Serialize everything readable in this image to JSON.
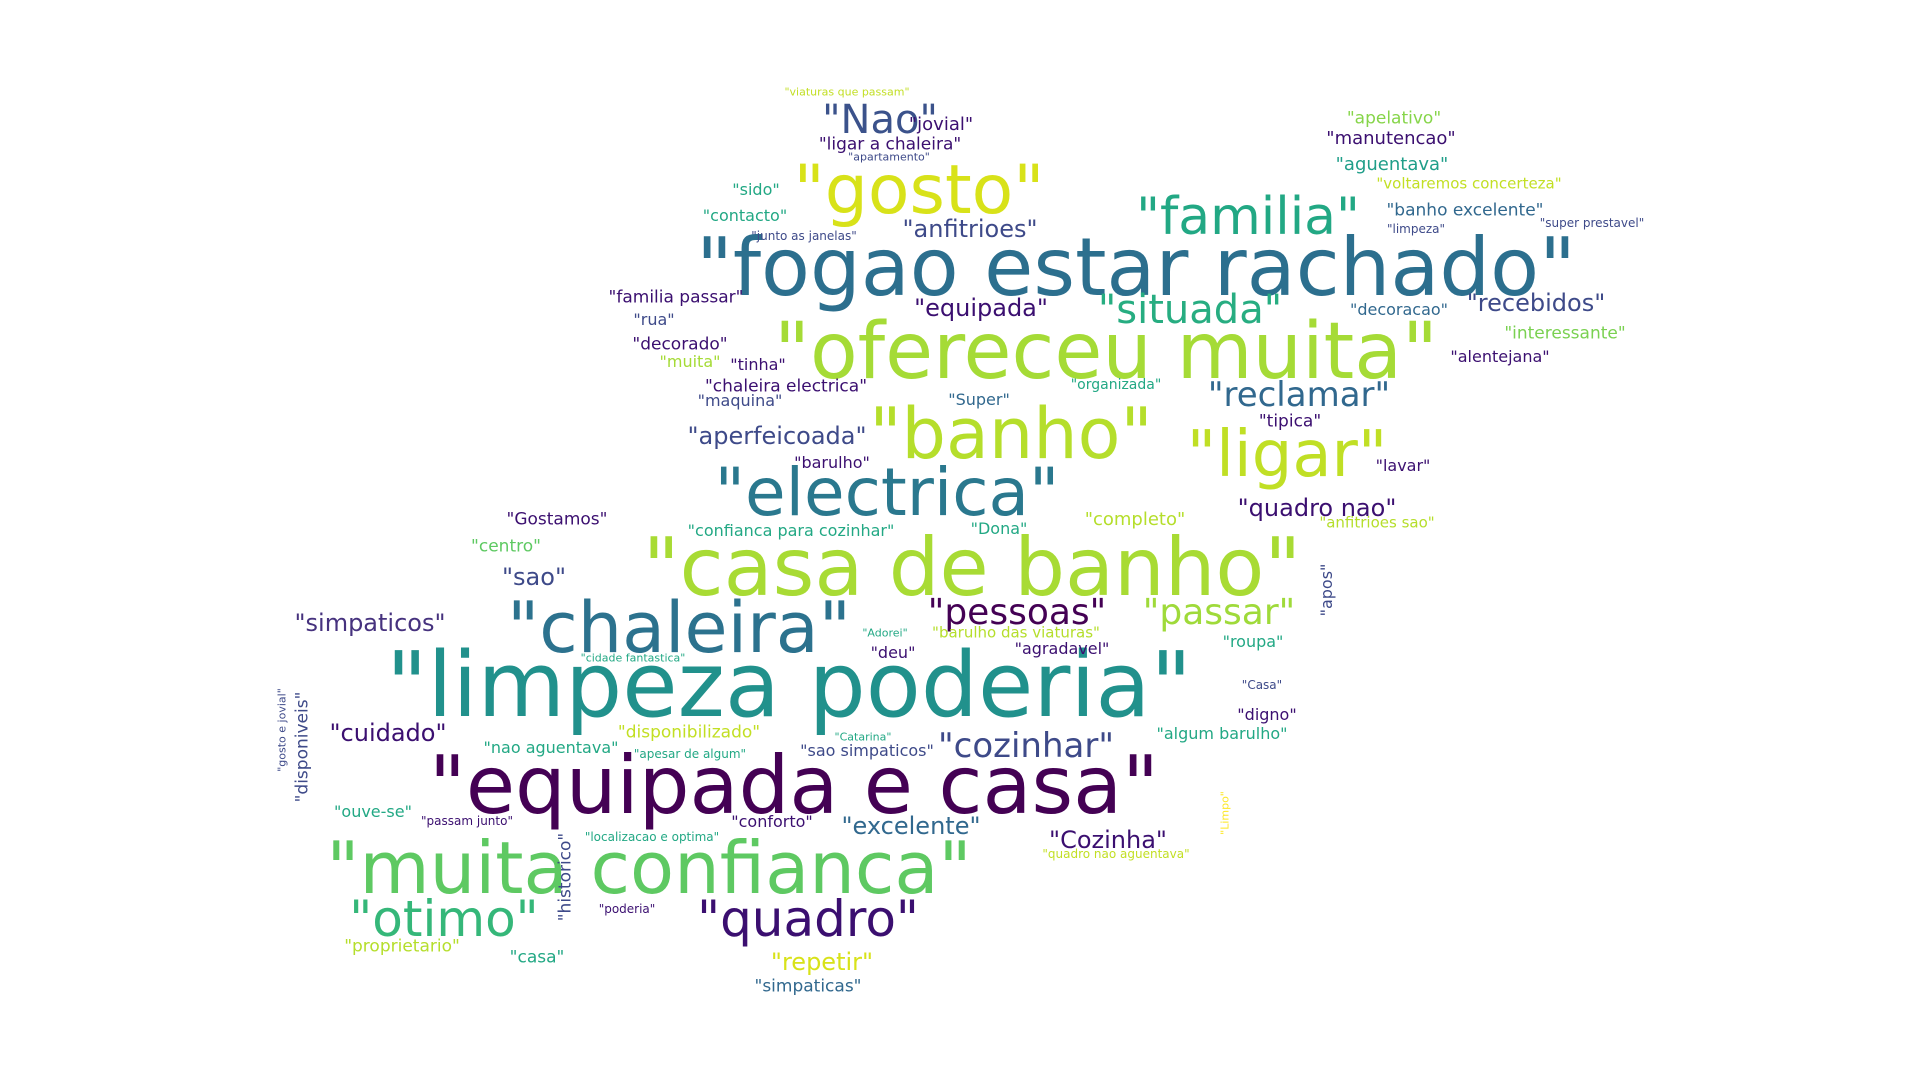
{
  "wordcloud": {
    "words": [
      {
        "text": "\"fogao estar rachado\"",
        "color": "#2c6f8e"
      },
      {
        "text": "\"limpeza poderia\"",
        "color": "#21918c"
      },
      {
        "text": "\"equipada e casa\"",
        "color": "#440154"
      },
      {
        "text": "\"casa de banho\"",
        "color": "#a8db34"
      },
      {
        "text": "\"ofereceu muita\"",
        "color": "#a5db36"
      },
      {
        "text": "\"muita confianca\"",
        "color": "#5ec962"
      },
      {
        "text": "\"gosto\"",
        "color": "#d8e219"
      },
      {
        "text": "\"banho\"",
        "color": "#b5de2b"
      },
      {
        "text": "\"ligar\"",
        "color": "#c0df25"
      },
      {
        "text": "\"electrica\"",
        "color": "#2a788e"
      },
      {
        "text": "\"chaleira\"",
        "color": "#2c728e"
      },
      {
        "text": "\"familia\"",
        "color": "#22a884"
      },
      {
        "text": "\"otimo\"",
        "color": "#35b779"
      },
      {
        "text": "\"quadro\"",
        "color": "#3b0f70"
      },
      {
        "text": "\"Nao\"",
        "color": "#3b528b"
      },
      {
        "text": "\"situada\"",
        "color": "#27ad81"
      },
      {
        "text": "\"reclamar\"",
        "color": "#31688e"
      },
      {
        "text": "\"pessoas\"",
        "color": "#440154"
      },
      {
        "text": "\"passar\"",
        "color": "#9fda3a"
      },
      {
        "text": "\"cozinhar\"",
        "color": "#3e4a89"
      },
      {
        "text": "\"anfitrioes\"",
        "color": "#3e4a89"
      },
      {
        "text": "\"equipada\"",
        "color": "#3b0f70"
      },
      {
        "text": "\"aperfeicoada\"",
        "color": "#3e4a89"
      },
      {
        "text": "\"quadro nao\"",
        "color": "#3b0f70"
      },
      {
        "text": "\"simpaticos\"",
        "color": "#46327e"
      },
      {
        "text": "\"cuidado\"",
        "color": "#3b0f70"
      },
      {
        "text": "\"excelente\"",
        "color": "#31688e"
      },
      {
        "text": "\"Cozinha\"",
        "color": "#3b0f70"
      },
      {
        "text": "\"repetir\"",
        "color": "#d8e219"
      },
      {
        "text": "\"sao\"",
        "color": "#3e4a89"
      },
      {
        "text": "\"recebidos\"",
        "color": "#3e4a89"
      },
      {
        "text": "\"jovial\"",
        "color": "#3b0f70"
      },
      {
        "text": "\"ligar a chaleira\"",
        "color": "#3b0f70"
      },
      {
        "text": "\"apartamento\"",
        "color": "#3e4a89"
      },
      {
        "text": "\"viaturas que passam\"",
        "color": "#c2df23"
      },
      {
        "text": "\"apelativo\"",
        "color": "#86d549"
      },
      {
        "text": "\"manutencao\"",
        "color": "#3b0f70"
      },
      {
        "text": "\"aguentava\"",
        "color": "#1f9e89"
      },
      {
        "text": "\"voltaremos concerteza\"",
        "color": "#c2df23"
      },
      {
        "text": "\"banho excelente\"",
        "color": "#31688e"
      },
      {
        "text": "\"limpeza\"",
        "color": "#3e4a89"
      },
      {
        "text": "\"super prestavel\"",
        "color": "#3e4a89"
      },
      {
        "text": "\"sido\"",
        "color": "#22a884"
      },
      {
        "text": "\"contacto\"",
        "color": "#22a884"
      },
      {
        "text": "\"junto as janelas\"",
        "color": "#3e4a89"
      },
      {
        "text": "\"familia passar\"",
        "color": "#3b0f70"
      },
      {
        "text": "\"rua\"",
        "color": "#3e4a89"
      },
      {
        "text": "\"decorado\"",
        "color": "#3b0f70"
      },
      {
        "text": "\"muita\"",
        "color": "#a5db36"
      },
      {
        "text": "\"tinha\"",
        "color": "#3b0f70"
      },
      {
        "text": "\"chaleira electrica\"",
        "color": "#3b0f70"
      },
      {
        "text": "\"maquina\"",
        "color": "#3e4a89"
      },
      {
        "text": "\"Super\"",
        "color": "#31688e"
      },
      {
        "text": "\"organizada\"",
        "color": "#22a884"
      },
      {
        "text": "\"decoracao\"",
        "color": "#31688e"
      },
      {
        "text": "\"interessante\"",
        "color": "#7ad151"
      },
      {
        "text": "\"alentejana\"",
        "color": "#3b0f70"
      },
      {
        "text": "\"tipica\"",
        "color": "#3b0f70"
      },
      {
        "text": "\"barulho\"",
        "color": "#3b0f70"
      },
      {
        "text": "\"lavar\"",
        "color": "#3b0f70"
      },
      {
        "text": "\"Gostamos\"",
        "color": "#3b0f70"
      },
      {
        "text": "\"confianca para cozinhar\"",
        "color": "#22a884"
      },
      {
        "text": "\"Dona\"",
        "color": "#22a884"
      },
      {
        "text": "\"completo\"",
        "color": "#b5de2b"
      },
      {
        "text": "\"anfitrioes sao\"",
        "color": "#b5de2b"
      },
      {
        "text": "\"centro\"",
        "color": "#5ec962"
      },
      {
        "text": "\"apos\"",
        "color": "#3e4a89"
      },
      {
        "text": "\"Adorei\"",
        "color": "#22a884"
      },
      {
        "text": "\"barulho das viaturas\"",
        "color": "#b5de2b"
      },
      {
        "text": "\"deu\"",
        "color": "#3b0f70"
      },
      {
        "text": "\"agradavel\"",
        "color": "#3b0f70"
      },
      {
        "text": "\"roupa\"",
        "color": "#22a884"
      },
      {
        "text": "\"cidade fantastica\"",
        "color": "#22a884"
      },
      {
        "text": "\"Casa\"",
        "color": "#3e4a89"
      },
      {
        "text": "\"digno\"",
        "color": "#3b0f70"
      },
      {
        "text": "\"algum barulho\"",
        "color": "#22a884"
      },
      {
        "text": "\"gosto e jovial\"",
        "color": "#3e4a89"
      },
      {
        "text": "\"disponiveis\"",
        "color": "#3e4a89"
      },
      {
        "text": "\"disponibilizado\"",
        "color": "#c2df23"
      },
      {
        "text": "\"nao aguentava\"",
        "color": "#22a884"
      },
      {
        "text": "\"apesar de algum\"",
        "color": "#22a884"
      },
      {
        "text": "\"sao simpaticos\"",
        "color": "#3e4a89"
      },
      {
        "text": "\"Catarina\"",
        "color": "#22a884"
      },
      {
        "text": "\"ouve-se\"",
        "color": "#22a884"
      },
      {
        "text": "\"passam junto\"",
        "color": "#3b0f70"
      },
      {
        "text": "\"conforto\"",
        "color": "#3b0f70"
      },
      {
        "text": "\"Limpo\"",
        "color": "#fde725"
      },
      {
        "text": "\"historico\"",
        "color": "#3e4a89"
      },
      {
        "text": "\"localizacao e optima\"",
        "color": "#22a884"
      },
      {
        "text": "\"quadro nao aguentava\"",
        "color": "#c2df23"
      },
      {
        "text": "\"poderia\"",
        "color": "#3b0f70"
      },
      {
        "text": "\"proprietario\"",
        "color": "#b5de2b"
      },
      {
        "text": "\"casa\"",
        "color": "#22a884"
      },
      {
        "text": "\"simpaticas\"",
        "color": "#31688e"
      }
    ]
  }
}
